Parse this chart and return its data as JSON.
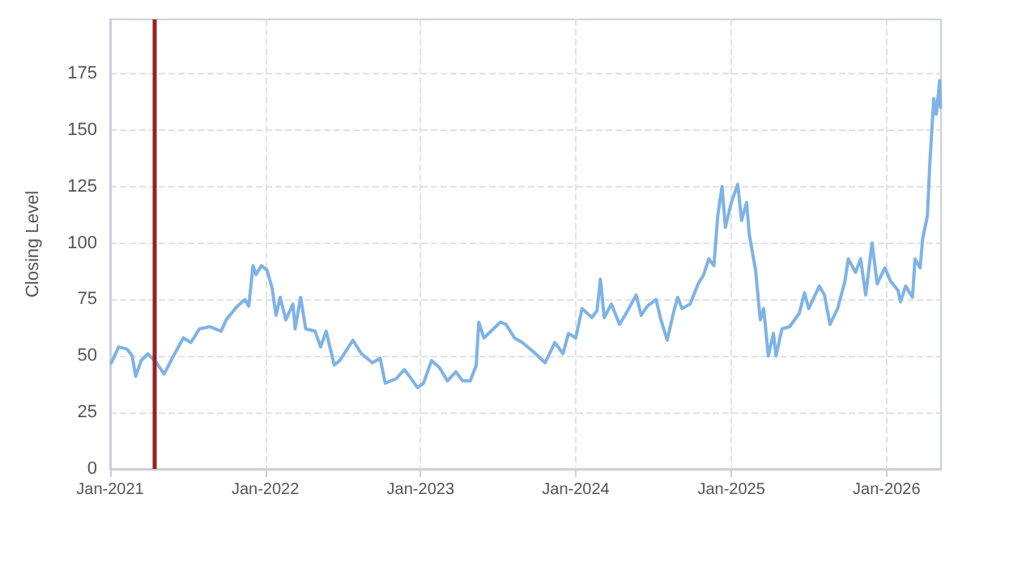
{
  "chart_data": {
    "type": "line",
    "ylabel": "Closing Level",
    "x": [
      "2021-01-04",
      "2021-01-21",
      "2021-02-10",
      "2021-02-22",
      "2021-03-02",
      "2021-03-15",
      "2021-03-31",
      "2021-04-20",
      "2021-05-08",
      "2021-05-27",
      "2021-06-22",
      "2021-07-10",
      "2021-07-30",
      "2021-08-24",
      "2021-09-19",
      "2021-10-01",
      "2021-10-27",
      "2021-11-14",
      "2021-11-23",
      "2021-12-03",
      "2021-12-10",
      "2021-12-23",
      "2022-01-05",
      "2022-01-17",
      "2022-01-26",
      "2022-02-05",
      "2022-02-18",
      "2022-03-07",
      "2022-03-12",
      "2022-03-25",
      "2022-04-06",
      "2022-04-28",
      "2022-05-11",
      "2022-05-24",
      "2022-06-12",
      "2022-06-25",
      "2022-07-26",
      "2022-08-15",
      "2022-09-10",
      "2022-09-28",
      "2022-10-10",
      "2022-11-05",
      "2022-11-24",
      "2022-12-06",
      "2022-12-25",
      "2023-01-08",
      "2023-01-27",
      "2023-02-14",
      "2023-03-05",
      "2023-03-25",
      "2023-04-10",
      "2023-04-28",
      "2023-05-12",
      "2023-05-18",
      "2023-05-30",
      "2023-07-08",
      "2023-07-21",
      "2023-08-10",
      "2023-08-28",
      "2023-09-23",
      "2023-10-21",
      "2023-11-13",
      "2023-12-02",
      "2023-12-15",
      "2024-01-01",
      "2024-01-16",
      "2024-02-08",
      "2024-02-20",
      "2024-02-28",
      "2024-03-08",
      "2024-03-25",
      "2024-04-13",
      "2024-05-02",
      "2024-05-22",
      "2024-06-03",
      "2024-06-17",
      "2024-07-08",
      "2024-07-18",
      "2024-08-03",
      "2024-08-19",
      "2024-08-28",
      "2024-09-07",
      "2024-09-26",
      "2024-10-15",
      "2024-10-28",
      "2024-11-09",
      "2024-11-21",
      "2024-11-30",
      "2024-12-10",
      "2024-12-18",
      "2025-01-01",
      "2025-01-16",
      "2025-01-25",
      "2025-02-06",
      "2025-02-12",
      "2025-02-27",
      "2025-03-10",
      "2025-03-18",
      "2025-03-29",
      "2025-04-10",
      "2025-04-16",
      "2025-04-30",
      "2025-05-18",
      "2025-06-10",
      "2025-06-22",
      "2025-07-02",
      "2025-07-27",
      "2025-08-08",
      "2025-08-21",
      "2025-09-08",
      "2025-09-25",
      "2025-10-03",
      "2025-10-20",
      "2025-11-01",
      "2025-11-13",
      "2025-11-28",
      "2025-12-10",
      "2025-12-28",
      "2026-01-11",
      "2026-01-28",
      "2026-02-03",
      "2026-02-15",
      "2026-03-03",
      "2026-03-09",
      "2026-03-21",
      "2026-03-27",
      "2026-04-07",
      "2026-04-13",
      "2026-04-22",
      "2026-04-28",
      "2026-05-06",
      "2026-05-08"
    ],
    "series": [
      {
        "color": "#7eb3e6",
        "values": [
          47,
          54,
          53,
          50,
          41,
          48,
          51,
          47,
          42,
          49,
          58,
          56,
          62,
          63,
          61,
          66,
          72,
          75,
          72,
          90,
          86,
          90,
          88,
          80,
          68,
          76,
          66,
          73,
          62,
          76,
          62,
          61,
          54,
          61,
          46,
          48,
          57,
          51,
          47,
          49,
          38,
          40,
          44,
          41,
          36,
          38,
          48,
          45,
          39,
          43,
          39,
          39,
          46,
          65,
          58,
          65,
          64,
          58,
          56,
          52,
          47,
          56,
          51,
          60,
          58,
          71,
          67,
          70,
          84,
          67,
          73,
          64,
          70,
          77,
          68,
          72,
          75,
          67,
          57,
          70,
          76,
          71,
          73,
          82,
          86,
          93,
          90,
          112,
          125,
          107,
          118,
          126,
          110,
          118,
          104,
          88,
          66,
          71,
          50,
          60,
          50,
          62,
          63,
          69,
          78,
          71,
          81,
          77,
          64,
          71,
          83,
          93,
          87,
          93,
          77,
          100,
          82,
          89,
          83,
          79,
          74,
          81,
          76,
          93,
          89,
          102,
          112,
          136,
          164,
          157,
          172,
          160
        ]
      }
    ],
    "xlim": [
      "2021-01-01",
      "2026-05-09"
    ],
    "xticks": [
      {
        "value": "2021-01-01",
        "label": "Jan-2021"
      },
      {
        "value": "2022-01-01",
        "label": "Jan-2022"
      },
      {
        "value": "2023-01-01",
        "label": "Jan-2023"
      },
      {
        "value": "2024-01-01",
        "label": "Jan-2024"
      },
      {
        "value": "2025-01-01",
        "label": "Jan-2025"
      },
      {
        "value": "2026-01-01",
        "label": "Jan-2026"
      }
    ],
    "ylim": [
      0,
      199
    ],
    "yticks": [
      0,
      25,
      50,
      75,
      100,
      125,
      150,
      175
    ],
    "ref_lines": [
      {
        "axis": "x",
        "value": "2021-04-15",
        "color": "#a01c1c"
      }
    ],
    "grid": true,
    "marker": "none",
    "line_style": "solid"
  }
}
